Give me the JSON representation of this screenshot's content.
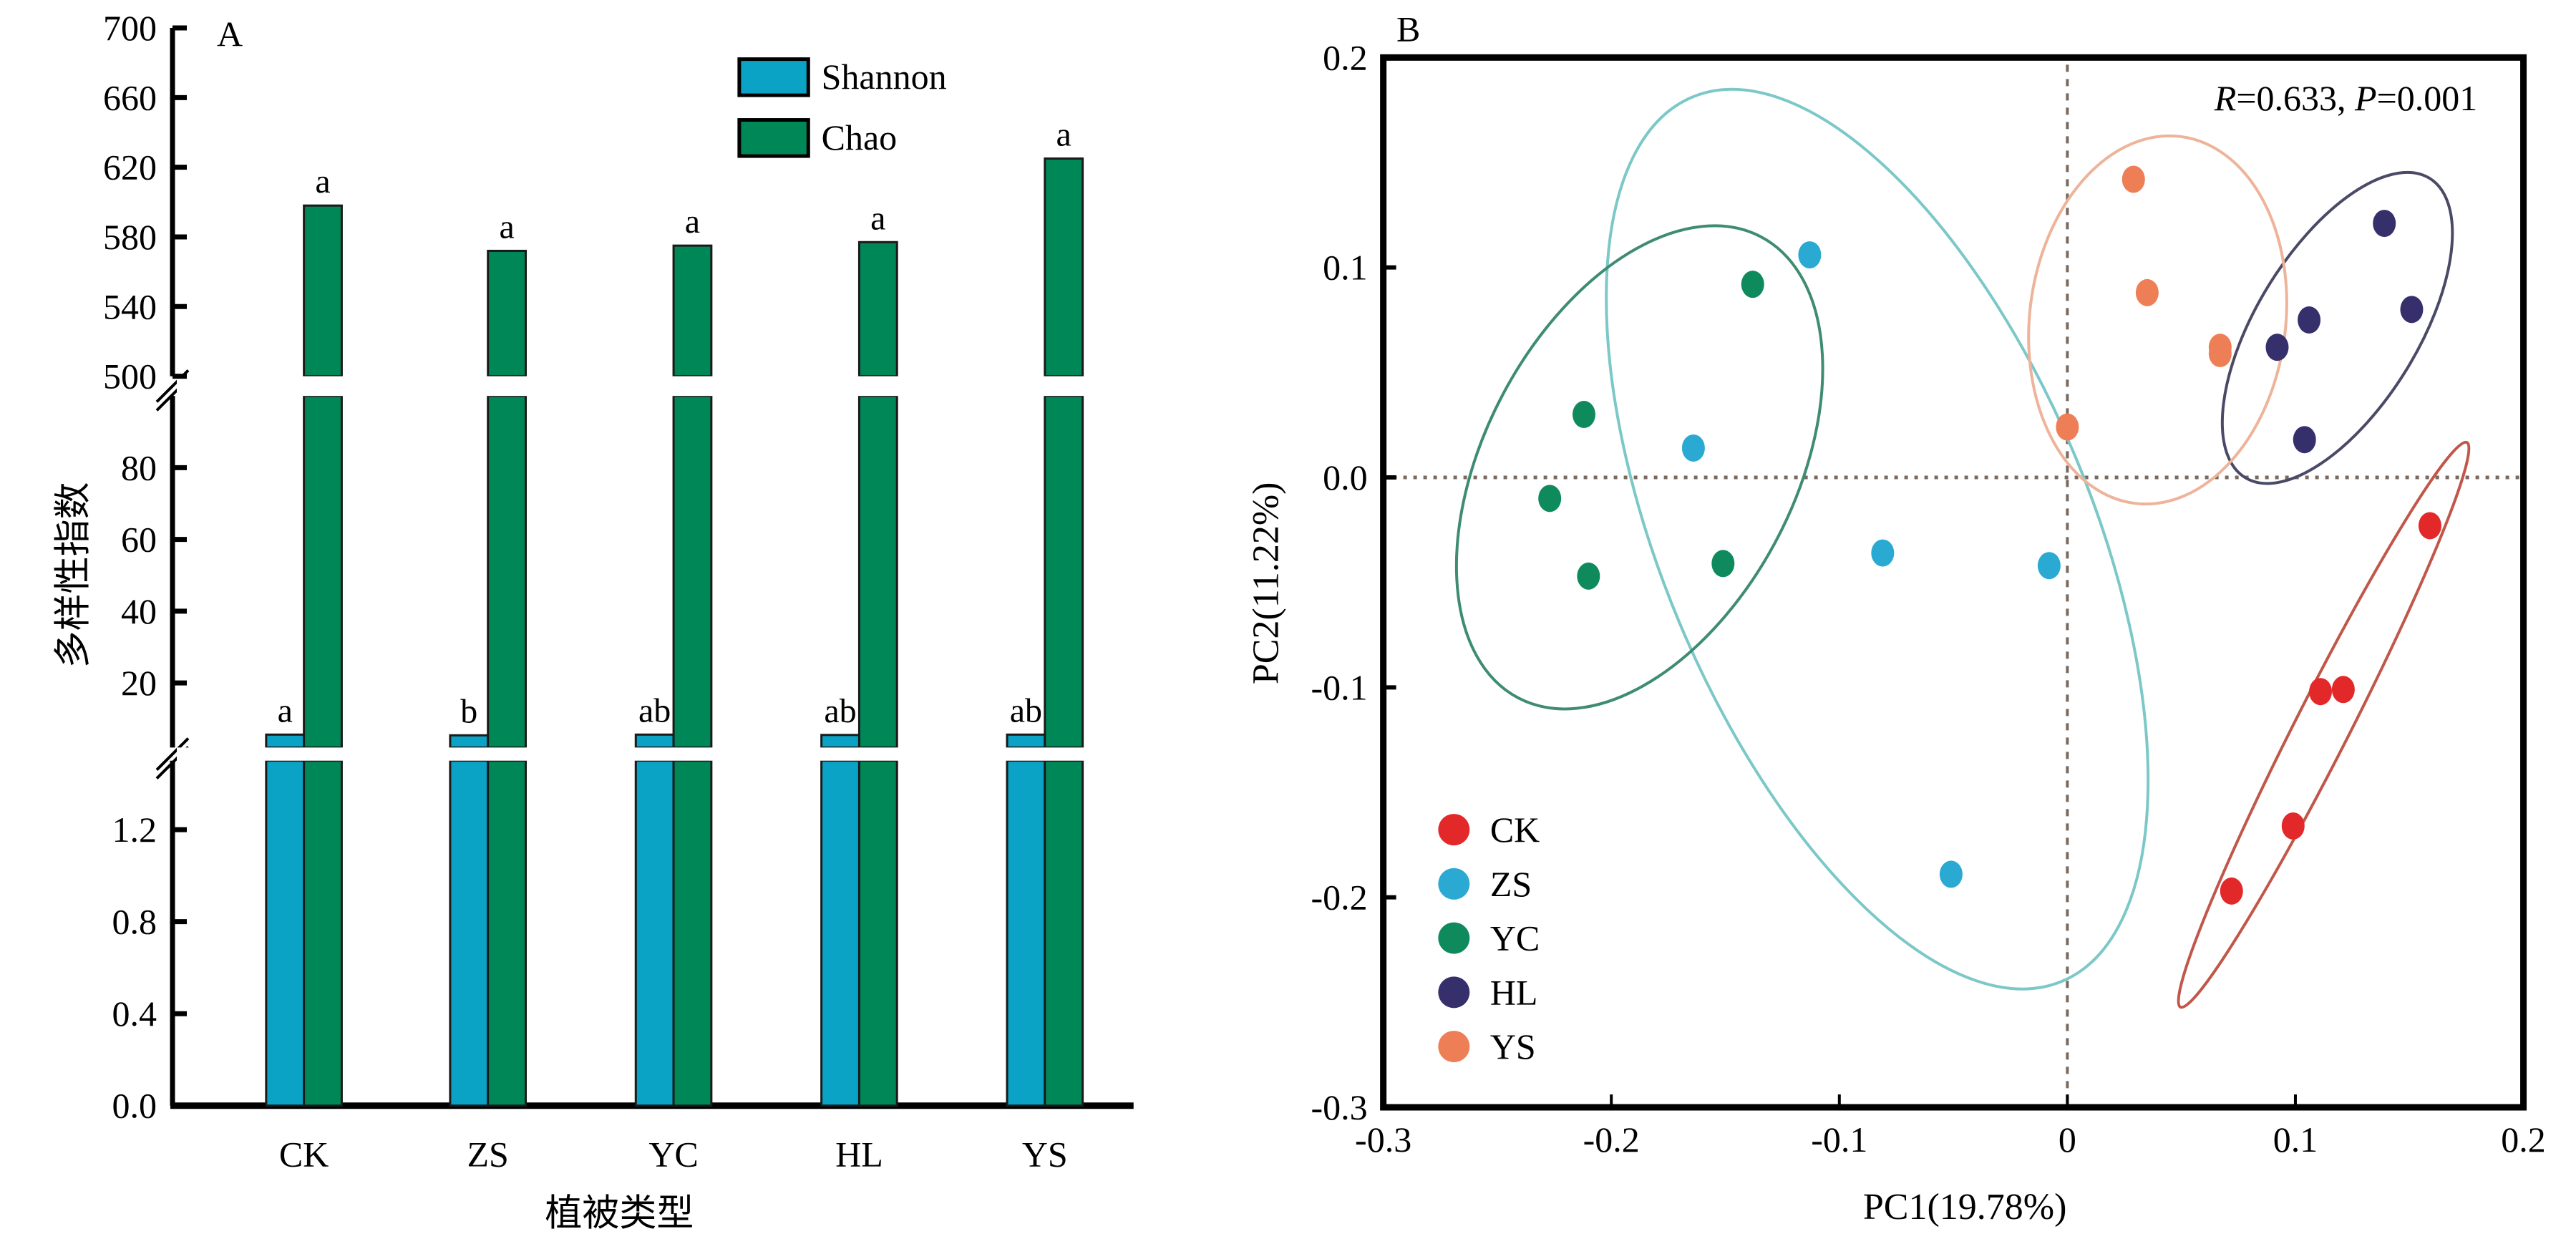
{
  "chart_data": [
    {
      "type": "bar",
      "panel_label": "A",
      "title": "",
      "xlabel": "植被类型",
      "ylabel": "多样性指数",
      "categories": [
        "CK",
        "ZS",
        "YC",
        "HL",
        "YS"
      ],
      "series": [
        {
          "name": "Shannon",
          "color": "#0aa3c6",
          "values": [
            5.6,
            5.4,
            5.6,
            5.5,
            5.6
          ],
          "significance": [
            "a",
            "b",
            "ab",
            "ab",
            "ab"
          ]
        },
        {
          "name": "Chao",
          "color": "#008758",
          "values": [
            598,
            572,
            575,
            577,
            625
          ],
          "significance": [
            "a",
            "a",
            "a",
            "a",
            "a"
          ]
        }
      ],
      "y_axis_segments": [
        {
          "range": [
            0,
            1.5
          ],
          "ticks": [
            "0.0",
            "0.4",
            "0.8",
            "1.2"
          ],
          "tick_values": [
            0,
            0.4,
            0.8,
            1.2
          ]
        },
        {
          "range": [
            2,
            100
          ],
          "ticks": [
            "20",
            "40",
            "60",
            "80"
          ],
          "tick_values": [
            20,
            40,
            60,
            80
          ]
        },
        {
          "range": [
            500,
            700
          ],
          "ticks": [
            "500",
            "540",
            "580",
            "620",
            "660",
            "700"
          ],
          "tick_values": [
            500,
            540,
            580,
            620,
            660,
            700
          ]
        }
      ],
      "axis_breaks": true,
      "legend": {
        "position": "top-right",
        "entries": [
          "Shannon",
          "Chao"
        ]
      },
      "grid": false
    },
    {
      "type": "scatter",
      "panel_label": "B",
      "title": "",
      "xlabel": "PC1(19.78%)",
      "ylabel": "PC2(11.22%)",
      "xlim": [
        -0.3,
        0.2
      ],
      "ylim": [
        -0.3,
        0.2
      ],
      "x_ticks": [
        "-0.3",
        "-0.2",
        "-0.1",
        "0",
        "0.1",
        "0.2"
      ],
      "x_tick_values": [
        -0.3,
        -0.2,
        -0.1,
        0,
        0.1,
        0.2
      ],
      "y_ticks": [
        "-0.3",
        "-0.2",
        "-0.1",
        "0.0",
        "0.1",
        "0.2"
      ],
      "y_tick_values": [
        -0.3,
        -0.2,
        -0.1,
        0.0,
        0.1,
        0.2
      ],
      "annotation": {
        "r_label": "R",
        "r_value": "=0.633, ",
        "p_label": "P",
        "p_value": "=0.001"
      },
      "reference_lines": {
        "x": 0,
        "y": 0,
        "style": "dotted"
      },
      "legend": {
        "position": "bottom-left",
        "entries": [
          "CK",
          "ZS",
          "YC",
          "HL",
          "YS"
        ]
      },
      "grid": false,
      "series": [
        {
          "name": "CK",
          "color": "#e3282a",
          "ellipse": "#c0574a",
          "points": [
            [
              0.159,
              -0.023
            ],
            [
              0.111,
              -0.102
            ],
            [
              0.121,
              -0.101
            ],
            [
              0.099,
              -0.166
            ],
            [
              0.072,
              -0.197
            ]
          ]
        },
        {
          "name": "ZS",
          "color": "#2aa9d2",
          "ellipse": "#7cc8c8",
          "points": [
            [
              -0.113,
              0.106
            ],
            [
              -0.164,
              0.014
            ],
            [
              -0.081,
              -0.036
            ],
            [
              -0.008,
              -0.042
            ],
            [
              -0.051,
              -0.189
            ]
          ]
        },
        {
          "name": "YC",
          "color": "#0e8a5c",
          "ellipse": "#3e8c72",
          "points": [
            [
              -0.138,
              0.092
            ],
            [
              -0.212,
              0.03
            ],
            [
              -0.227,
              -0.01
            ],
            [
              -0.21,
              -0.047
            ],
            [
              -0.151,
              -0.041
            ]
          ]
        },
        {
          "name": "HL",
          "color": "#35306b",
          "ellipse": "#4a4a66",
          "points": [
            [
              0.139,
              0.121
            ],
            [
              0.106,
              0.075
            ],
            [
              0.151,
              0.08
            ],
            [
              0.092,
              0.062
            ],
            [
              0.104,
              0.018
            ]
          ]
        },
        {
          "name": "YS",
          "color": "#ee7e55",
          "ellipse": "#edb49a",
          "points": [
            [
              0.029,
              0.142
            ],
            [
              0.035,
              0.088
            ],
            [
              0.067,
              0.062
            ],
            [
              0.067,
              0.059
            ],
            [
              0.0,
              0.024
            ]
          ]
        }
      ]
    }
  ]
}
